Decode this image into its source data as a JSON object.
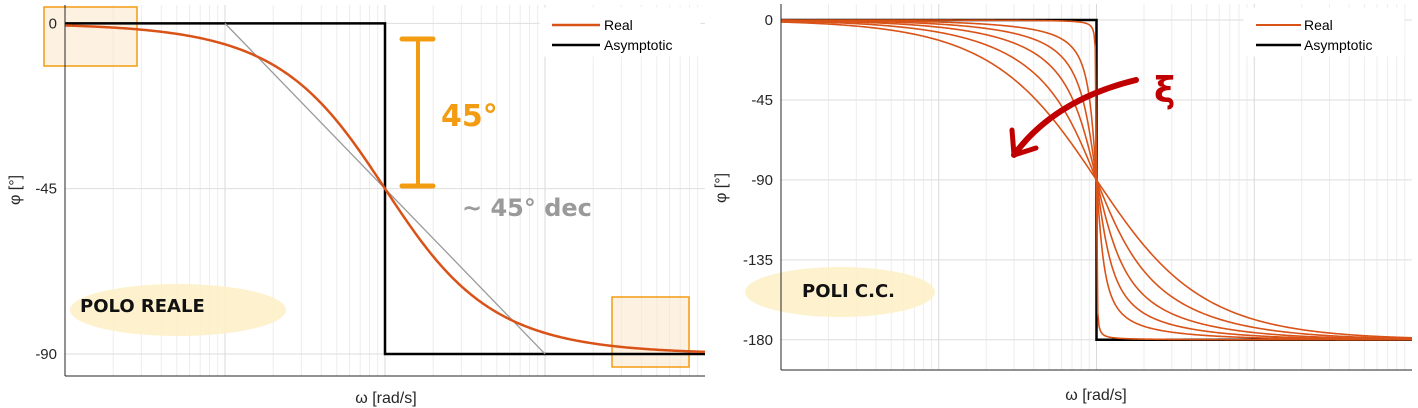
{
  "chart_data": [
    {
      "type": "line",
      "xlabel": "ω [rad/s]",
      "ylabel": "φ [°]",
      "x_scale": "log",
      "xlim_decades": [
        -2,
        2
      ],
      "ylim": [
        -96,
        5
      ],
      "yticks": [
        "0",
        "-45",
        "-90"
      ],
      "yticks_values": [
        0,
        -45,
        -90
      ],
      "grid": true,
      "legend": [
        "Real",
        "Asymptotic"
      ],
      "legend_position": "top-right",
      "colors": {
        "real": "#d95319",
        "asymptotic": "#000000"
      },
      "series": [
        {
          "name": "Real",
          "values": "phase = -atan(omega/omega_n)"
        },
        {
          "name": "Asymptotic",
          "values": "0 for omega < omega_n, -90 for omega > omega_n"
        }
      ],
      "annotations": {
        "bracket_label": "45°",
        "slope_label": "~ 45° dec",
        "title_note": "POLO REALE"
      }
    },
    {
      "type": "line",
      "xlabel": "ω [rad/s]",
      "ylabel": "φ [°]",
      "x_scale": "log",
      "xlim_decades": [
        -2,
        2
      ],
      "ylim": [
        -197,
        9
      ],
      "yticks": [
        "0",
        "-45",
        "-90",
        "-135",
        "-180"
      ],
      "yticks_values": [
        0,
        -45,
        -90,
        -135,
        -180
      ],
      "grid": true,
      "legend": [
        "Real",
        "Asymptotic"
      ],
      "legend_position": "top-right",
      "colors": {
        "real": "#d95319",
        "asymptotic": "#000000"
      },
      "damping_ratios": [
        0.005,
        0.1,
        0.2,
        0.35,
        0.6,
        1.0
      ],
      "annotations": {
        "arrow_label": "ξ",
        "title_note": "POLI C.C."
      }
    }
  ]
}
